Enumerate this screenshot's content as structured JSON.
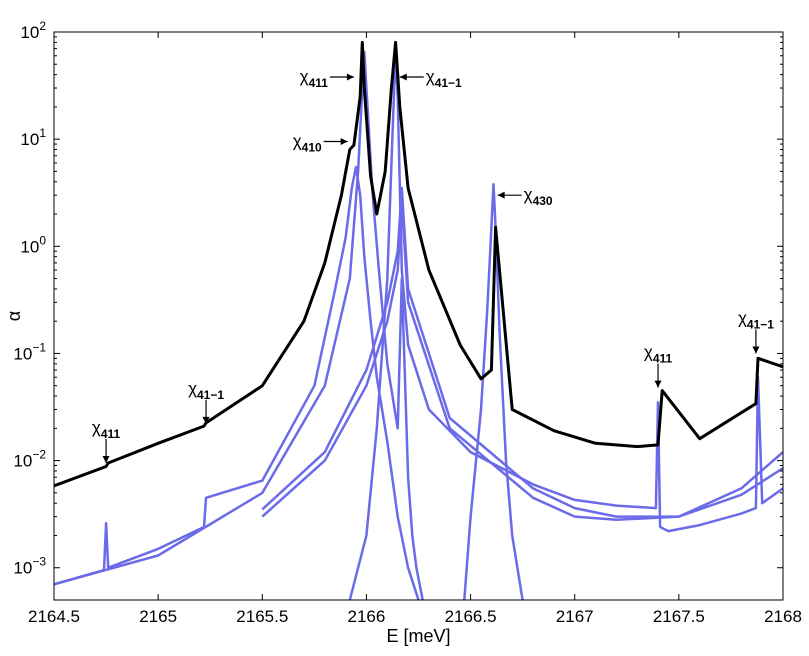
{
  "chart_data": {
    "type": "line",
    "xlabel": "E [meV]",
    "ylabel": "α",
    "xlim": [
      2164.5,
      2168
    ],
    "ylim": [
      0.0005,
      100
    ],
    "y_scale": "log",
    "grid": false,
    "legend": "none",
    "x_ticks": [
      2164.5,
      2165,
      2165.5,
      2166,
      2166.5,
      2167,
      2167.5,
      2168
    ],
    "x_tick_labels": [
      "2164.5",
      "2165",
      "2165.5",
      "2166",
      "2166.5",
      "2167",
      "2167.5",
      "2168"
    ],
    "y_ticks": [
      0.001,
      0.01,
      0.1,
      1,
      10,
      100
    ],
    "y_tick_labels": [
      {
        "base": "10",
        "exp": "−3"
      },
      {
        "base": "10",
        "exp": "−2"
      },
      {
        "base": "10",
        "exp": "−1"
      },
      {
        "base": "10",
        "exp": "0"
      },
      {
        "base": "10",
        "exp": "1"
      },
      {
        "base": "10",
        "exp": "2"
      }
    ],
    "series": [
      {
        "color": "#000000",
        "x": [
          2164.5,
          2164.75,
          2164.76,
          2165.0,
          2165.22,
          2165.23,
          2165.5,
          2165.7,
          2165.8,
          2165.88,
          2165.92,
          2165.94,
          2165.97,
          2165.98,
          2165.99,
          2166.02,
          2166.05,
          2166.09,
          2166.12,
          2166.14,
          2166.16,
          2166.2,
          2166.3,
          2166.45,
          2166.55,
          2166.6,
          2166.62,
          2166.7,
          2166.9,
          2167.1,
          2167.3,
          2167.4,
          2167.42,
          2167.6,
          2167.8,
          2167.87,
          2167.88,
          2168.0
        ],
        "y": [
          0.0058,
          0.0088,
          0.0095,
          0.0145,
          0.021,
          0.0225,
          0.05,
          0.2,
          0.7,
          3.0,
          8.0,
          8.8,
          25,
          80,
          30,
          4.5,
          2.0,
          5.0,
          30,
          80,
          20,
          3.5,
          0.6,
          0.12,
          0.058,
          0.07,
          1.5,
          0.03,
          0.019,
          0.0145,
          0.0135,
          0.014,
          0.045,
          0.016,
          0.028,
          0.034,
          0.09,
          0.075
        ]
      },
      {
        "color": "#6b6bea",
        "x": [
          2164.5,
          2164.74,
          2164.75,
          2164.76,
          2165.0,
          2165.22,
          2165.23,
          2165.5,
          2165.75,
          2165.85,
          2165.9,
          2165.93,
          2165.95,
          2165.97,
          2165.99,
          2166.02,
          2166.05,
          2166.1,
          2166.15,
          2166.2,
          2166.25
        ],
        "y": [
          0.0007,
          0.00095,
          0.0026,
          0.001,
          0.0015,
          0.0024,
          0.0045,
          0.0065,
          0.05,
          0.4,
          1.2,
          3.5,
          5.5,
          3.0,
          0.8,
          0.2,
          0.06,
          0.015,
          0.003,
          0.001,
          0.0005
        ]
      },
      {
        "color": "#6b6bea",
        "x": [
          2164.5,
          2165.0,
          2165.5,
          2165.8,
          2165.92,
          2165.96,
          2165.98,
          2165.99,
          2166.0,
          2166.03,
          2166.06,
          2166.1,
          2166.15,
          2166.17,
          2166.2,
          2166.22,
          2166.24,
          2166.27
        ],
        "y": [
          0.0007,
          0.0013,
          0.005,
          0.05,
          0.5,
          5.0,
          30,
          65,
          30,
          3.0,
          0.6,
          0.08,
          0.02,
          0.5,
          0.007,
          0.002,
          0.001,
          0.0005
        ]
      },
      {
        "color": "#6b6bea",
        "x": [
          2165.92,
          2166.0,
          2166.05,
          2166.1,
          2166.13,
          2166.14,
          2166.15,
          2166.17,
          2166.2,
          2166.3,
          2166.5,
          2166.8,
          2167.0,
          2167.2,
          2167.39,
          2167.4,
          2167.41,
          2167.45,
          2167.6,
          2167.8,
          2167.87,
          2167.88,
          2167.9,
          2168.0
        ],
        "y": [
          0.0005,
          0.002,
          0.02,
          0.5,
          20,
          65,
          25,
          0.6,
          0.12,
          0.03,
          0.012,
          0.006,
          0.0043,
          0.0038,
          0.0036,
          0.035,
          0.0024,
          0.0022,
          0.0025,
          0.0032,
          0.0036,
          0.06,
          0.004,
          0.0055
        ]
      },
      {
        "color": "#6b6bea",
        "x": [
          2165.5,
          2165.8,
          2166.0,
          2166.1,
          2166.15,
          2166.17,
          2166.2,
          2166.4,
          2166.8,
          2167.0,
          2167.2,
          2167.5,
          2167.8,
          2168.0
        ],
        "y": [
          0.0035,
          0.012,
          0.07,
          0.3,
          0.9,
          3.5,
          0.4,
          0.025,
          0.0055,
          0.0036,
          0.003,
          0.003,
          0.0048,
          0.0085
        ]
      },
      {
        "color": "#6b6bea",
        "x": [
          2165.5,
          2165.8,
          2166.0,
          2166.1,
          2166.15,
          2166.17,
          2166.2,
          2166.4,
          2166.8,
          2167.0,
          2167.2,
          2167.5,
          2167.8,
          2168.0
        ],
        "y": [
          0.003,
          0.01,
          0.05,
          0.2,
          0.6,
          2.5,
          0.3,
          0.02,
          0.0045,
          0.003,
          0.0028,
          0.003,
          0.0055,
          0.012
        ]
      },
      {
        "color": "#6b6bea",
        "x": [
          2166.47,
          2166.5,
          2166.55,
          2166.58,
          2166.6,
          2166.61,
          2166.62,
          2166.64,
          2166.67,
          2166.7,
          2166.75
        ],
        "y": [
          0.0005,
          0.003,
          0.03,
          0.25,
          1.5,
          3.8,
          1.5,
          0.15,
          0.01,
          0.002,
          0.0005
        ]
      }
    ],
    "annotations": [
      {
        "label": "χ",
        "sub": "411",
        "x": 2165.94,
        "y": 38,
        "dir": "right"
      },
      {
        "label": "χ",
        "sub": "41−1",
        "x": 2166.16,
        "y": 38,
        "dir": "left"
      },
      {
        "label": "χ",
        "sub": "410",
        "x": 2165.91,
        "y": 9.5,
        "dir": "right"
      },
      {
        "label": "χ",
        "sub": "430",
        "x": 2166.63,
        "y": 3.0,
        "dir": "left"
      },
      {
        "label": "χ",
        "sub": "411",
        "x": 2164.75,
        "y": 0.0095,
        "dir": "down"
      },
      {
        "label": "χ",
        "sub": "41−1",
        "x": 2165.23,
        "y": 0.022,
        "dir": "down"
      },
      {
        "label": "χ",
        "sub": "411",
        "x": 2167.4,
        "y": 0.048,
        "dir": "down"
      },
      {
        "label": "χ",
        "sub": "41−1",
        "x": 2167.87,
        "y": 0.1,
        "dir": "down"
      }
    ]
  }
}
